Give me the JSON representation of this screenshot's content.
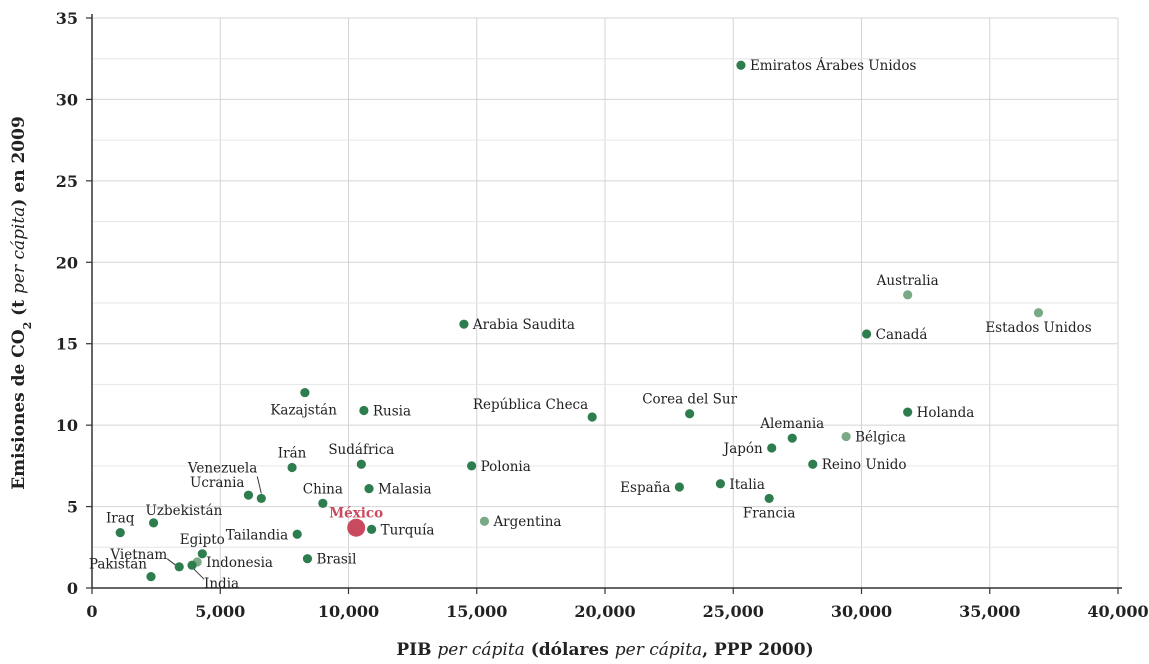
{
  "chart_data": {
    "type": "scatter",
    "xlabel_parts": [
      {
        "text": "PIB ",
        "style": "bold"
      },
      {
        "text": "per cápita",
        "style": "italic"
      },
      {
        "text": " (dólares ",
        "style": "bold"
      },
      {
        "text": "per cápita",
        "style": "italic"
      },
      {
        "text": ", PPP 2000)",
        "style": "bold"
      }
    ],
    "ylabel_parts": [
      {
        "text": "Emisiones de CO",
        "style": "bold"
      },
      {
        "text": "2",
        "style": "sub"
      },
      {
        "text": " (t ",
        "style": "bold"
      },
      {
        "text": "per cápita",
        "style": "italic"
      },
      {
        "text": ") en 2009",
        "style": "bold"
      }
    ],
    "xlim": [
      0,
      40000
    ],
    "ylim": [
      0,
      35
    ],
    "x_ticks": [
      {
        "value": 0,
        "label": "0"
      },
      {
        "value": 5000,
        "label": "5,000"
      },
      {
        "value": 10000,
        "label": "10,000"
      },
      {
        "value": 15000,
        "label": "15,000"
      },
      {
        "value": 20000,
        "label": "20,000"
      },
      {
        "value": 25000,
        "label": "25,000"
      },
      {
        "value": 30000,
        "label": "30,000"
      },
      {
        "value": 35000,
        "label": "35,000"
      },
      {
        "value": 40000,
        "label": "40,000"
      }
    ],
    "y_ticks": [
      {
        "value": 0,
        "label": "0"
      },
      {
        "value": 5,
        "label": "5"
      },
      {
        "value": 10,
        "label": "10"
      },
      {
        "value": 15,
        "label": "15"
      },
      {
        "value": 20,
        "label": "20"
      },
      {
        "value": 25,
        "label": "25"
      },
      {
        "value": 30,
        "label": "30"
      },
      {
        "value": 35,
        "label": "35"
      }
    ],
    "grid": true,
    "colors": {
      "dark": "#2e7d4f",
      "light": "#7aa985",
      "highlight": "#c94a5e",
      "grid": "#d4d4d4",
      "axis": "#333333"
    },
    "points": [
      {
        "name": "Emiratos Árabes Unidos",
        "x": 25300,
        "y": 32.1,
        "shade": "dark",
        "label_pos": "right"
      },
      {
        "name": "Australia",
        "x": 31800,
        "y": 18.0,
        "shade": "light",
        "label_pos": "top"
      },
      {
        "name": "Estados Unidos",
        "x": 36900,
        "y": 16.9,
        "shade": "light",
        "label_pos": "bottom"
      },
      {
        "name": "Arabia Saudita",
        "x": 14500,
        "y": 16.2,
        "shade": "dark",
        "label_pos": "right"
      },
      {
        "name": "Canadá",
        "x": 30200,
        "y": 15.6,
        "shade": "dark",
        "label_pos": "right"
      },
      {
        "name": "Kazajstán",
        "x": 8300,
        "y": 12.0,
        "shade": "dark",
        "label_pos": "bottom-left"
      },
      {
        "name": "Rusia",
        "x": 10600,
        "y": 10.9,
        "shade": "dark",
        "label_pos": "right"
      },
      {
        "name": "Holanda",
        "x": 31800,
        "y": 10.8,
        "shade": "dark",
        "label_pos": "right"
      },
      {
        "name": "Corea del Sur",
        "x": 23300,
        "y": 10.7,
        "shade": "dark",
        "label_pos": "top"
      },
      {
        "name": "República Checa",
        "x": 19500,
        "y": 10.5,
        "shade": "dark",
        "label_pos": "top-left"
      },
      {
        "name": "Bélgica",
        "x": 29400,
        "y": 9.3,
        "shade": "light",
        "label_pos": "right"
      },
      {
        "name": "Alemania",
        "x": 27300,
        "y": 9.2,
        "shade": "dark",
        "label_pos": "top"
      },
      {
        "name": "Japón",
        "x": 26500,
        "y": 8.6,
        "shade": "dark",
        "label_pos": "left"
      },
      {
        "name": "Sudáfrica",
        "x": 10500,
        "y": 7.6,
        "shade": "dark",
        "label_pos": "top"
      },
      {
        "name": "Reino Unido",
        "x": 28100,
        "y": 7.6,
        "shade": "dark",
        "label_pos": "right"
      },
      {
        "name": "Polonia",
        "x": 14800,
        "y": 7.5,
        "shade": "dark",
        "label_pos": "right"
      },
      {
        "name": "Irán",
        "x": 7800,
        "y": 7.4,
        "shade": "dark",
        "label_pos": "top"
      },
      {
        "name": "Italia",
        "x": 24500,
        "y": 6.4,
        "shade": "dark",
        "label_pos": "right"
      },
      {
        "name": "España",
        "x": 22900,
        "y": 6.2,
        "shade": "dark",
        "label_pos": "left"
      },
      {
        "name": "Malasia",
        "x": 10800,
        "y": 6.1,
        "shade": "dark",
        "label_pos": "right"
      },
      {
        "name": "Ucrania",
        "x": 6100,
        "y": 5.7,
        "shade": "dark",
        "label_pos": "top-left"
      },
      {
        "name": "Francia",
        "x": 26400,
        "y": 5.5,
        "shade": "dark",
        "label_pos": "bottom"
      },
      {
        "name": "Venezuela",
        "x": 6600,
        "y": 5.5,
        "shade": "dark",
        "label_pos": "leader-up"
      },
      {
        "name": "China",
        "x": 9000,
        "y": 5.2,
        "shade": "dark",
        "label_pos": "top"
      },
      {
        "name": "Argentina",
        "x": 15300,
        "y": 4.1,
        "shade": "light",
        "label_pos": "right"
      },
      {
        "name": "Uzbekistán",
        "x": 2400,
        "y": 4.0,
        "shade": "dark",
        "label_pos": "top-right"
      },
      {
        "name": "México",
        "x": 10300,
        "y": 3.7,
        "shade": "highlight",
        "label_pos": "top",
        "r": 9
      },
      {
        "name": "Turquía",
        "x": 10900,
        "y": 3.6,
        "shade": "dark",
        "label_pos": "right"
      },
      {
        "name": "Iraq",
        "x": 1100,
        "y": 3.4,
        "shade": "dark",
        "label_pos": "top"
      },
      {
        "name": "Tailandia",
        "x": 8000,
        "y": 3.3,
        "shade": "dark",
        "label_pos": "left"
      },
      {
        "name": "Egipto",
        "x": 4300,
        "y": 2.1,
        "shade": "dark",
        "label_pos": "top"
      },
      {
        "name": "Brasil",
        "x": 8400,
        "y": 1.8,
        "shade": "dark",
        "label_pos": "right"
      },
      {
        "name": "Indonesia",
        "x": 4100,
        "y": 1.6,
        "shade": "light",
        "label_pos": "right"
      },
      {
        "name": "India",
        "x": 3900,
        "y": 1.4,
        "shade": "dark",
        "label_pos": "leader-down"
      },
      {
        "name": "Vietnam",
        "x": 3400,
        "y": 1.3,
        "shade": "dark",
        "label_pos": "leader-left"
      },
      {
        "name": "Pakistán",
        "x": 2300,
        "y": 0.7,
        "shade": "dark",
        "label_pos": "top-left"
      }
    ]
  }
}
